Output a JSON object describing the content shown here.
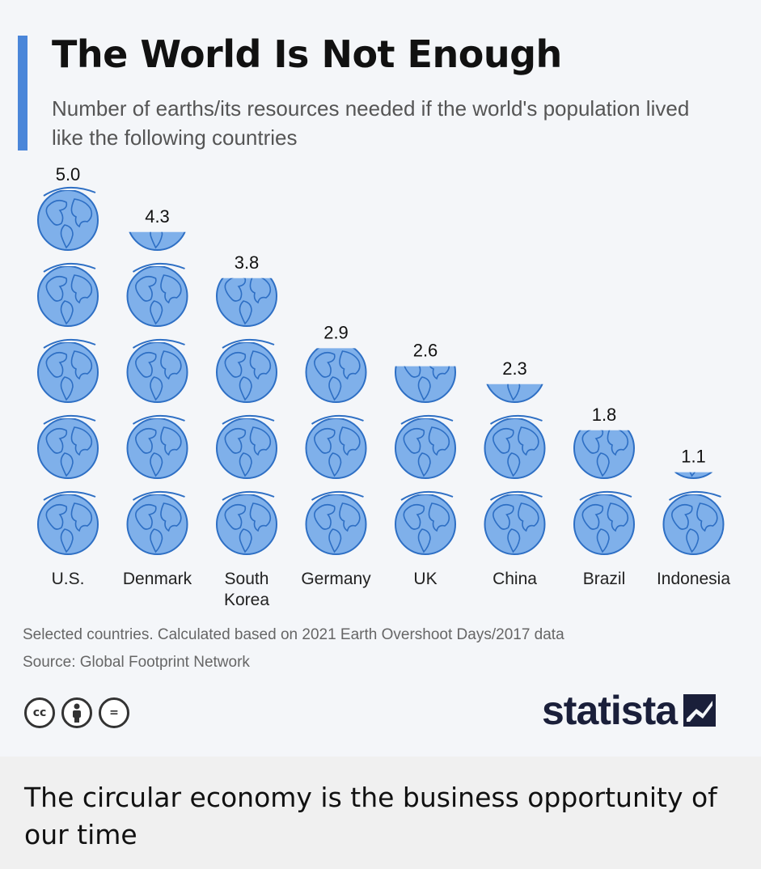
{
  "header": {
    "title": "The World Is Not Enough",
    "subtitle": "Number of earths/its resources needed if the world's population lived like the following countries"
  },
  "chart_data": {
    "type": "bar",
    "title": "The World Is Not Enough",
    "subtitle": "Number of earths/its resources needed if the world's population lived like the following countries",
    "categories": [
      "U.S.",
      "Denmark",
      "South Korea",
      "Germany",
      "UK",
      "China",
      "Brazil",
      "Indonesia"
    ],
    "category_labels": [
      [
        "U.S."
      ],
      [
        "Denmark"
      ],
      [
        "South",
        "Korea"
      ],
      [
        "Germany"
      ],
      [
        "UK"
      ],
      [
        "China"
      ],
      [
        "Brazil"
      ],
      [
        "Indonesia"
      ]
    ],
    "values": [
      5.0,
      4.3,
      3.8,
      2.9,
      2.6,
      2.3,
      1.8,
      1.1
    ],
    "value_labels": [
      "5.0",
      "4.3",
      "3.8",
      "2.9",
      "2.6",
      "2.3",
      "1.8",
      "1.1"
    ],
    "mark": "stacked globe icons, one per earth",
    "ylim": [
      0,
      5
    ],
    "grid": false,
    "legend": "none",
    "colors": {
      "globe_fill": "#7fb0ea",
      "globe_line": "#2e6fc4"
    }
  },
  "footnote": {
    "note": "Selected countries. Calculated based on 2021 Earth Overshoot Days/2017 data",
    "source": "Source: Global Footprint Network"
  },
  "license_icons": [
    "cc-icon",
    "attribution-icon",
    "no-derivatives-icon"
  ],
  "license_labels": {
    "cc": "cc",
    "equals": "="
  },
  "brand": {
    "name": "statista"
  },
  "caption": {
    "text": "The circular economy is the business opportunity of our time"
  },
  "colors": {
    "accent": "#4a86d9",
    "background": "#f4f6f9",
    "caption_background": "#f0f0f0"
  }
}
